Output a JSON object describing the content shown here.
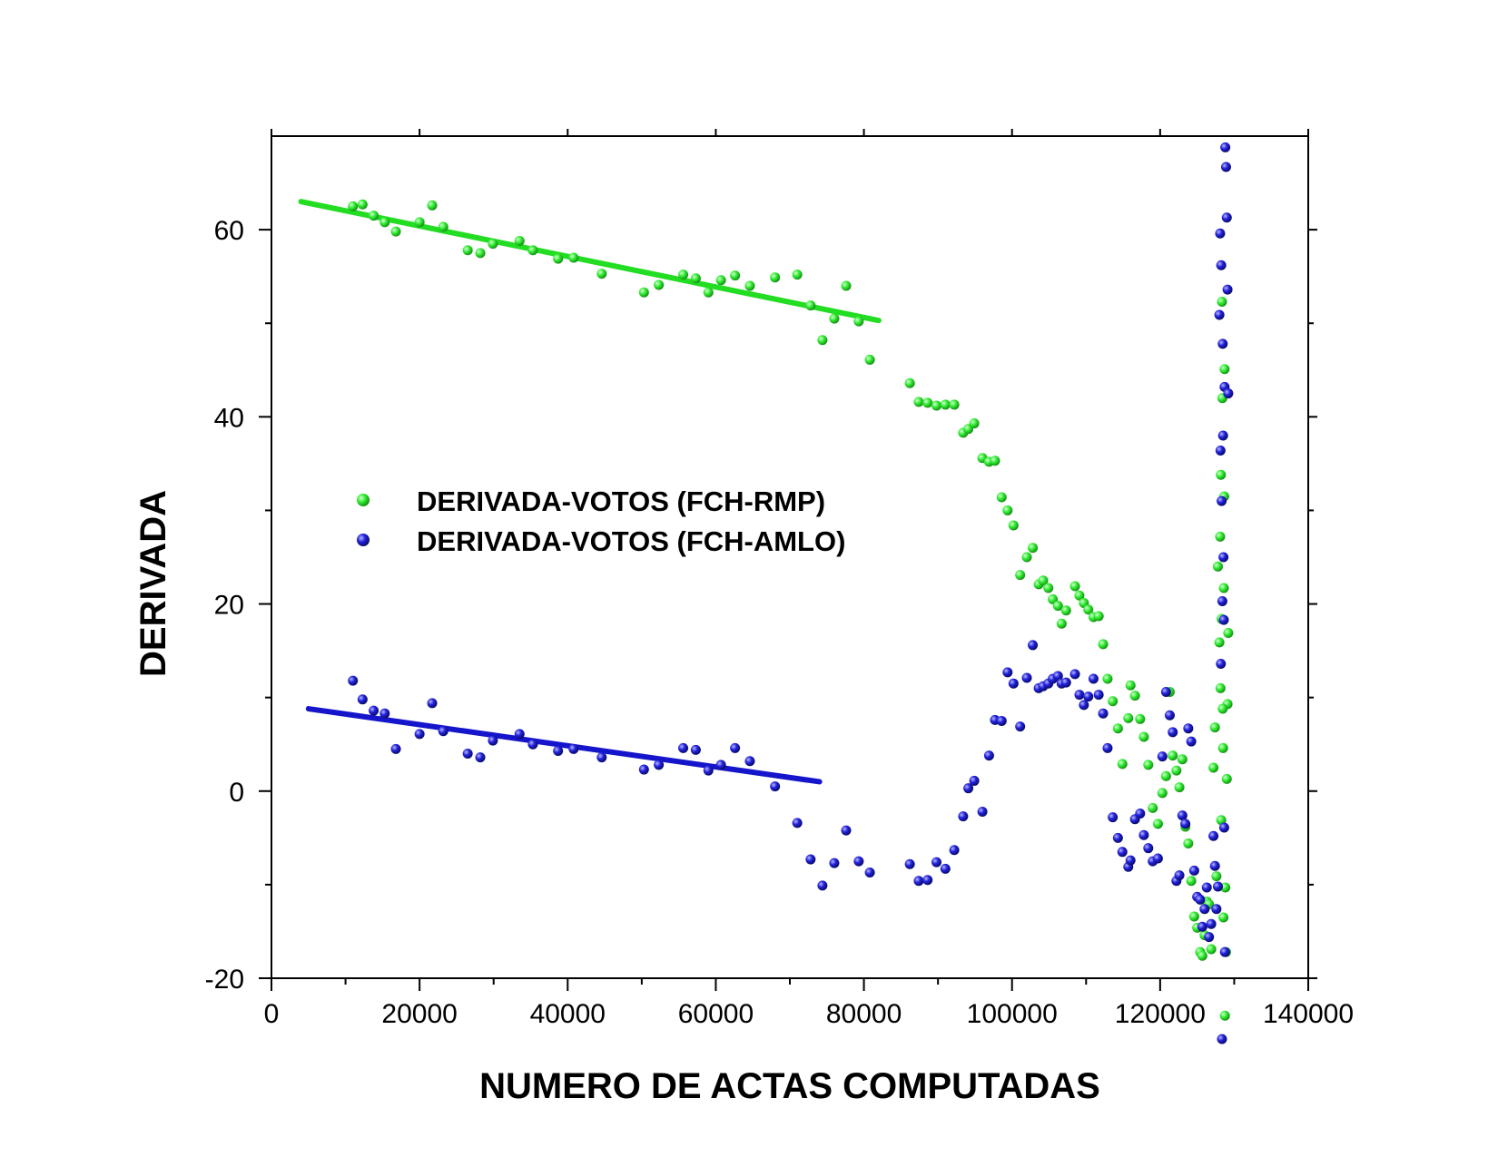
{
  "chart_data": {
    "type": "scatter",
    "title": "",
    "xlabel": "NUMERO DE ACTAS COMPUTADAS",
    "ylabel": "DERIVADA",
    "xlim": [
      0,
      140000
    ],
    "ylim": [
      -20,
      70
    ],
    "x_ticks": [
      0,
      20000,
      40000,
      60000,
      80000,
      100000,
      120000,
      140000
    ],
    "x_tick_labels": [
      "0",
      "20000",
      "40000",
      "60000",
      "80000",
      "100000",
      "120000",
      "140000"
    ],
    "y_ticks": [
      -20,
      0,
      20,
      40,
      60
    ],
    "y_tick_labels": [
      "-20",
      "0",
      "20",
      "40",
      "60"
    ],
    "grid": false,
    "legend_position": "center-left",
    "series": [
      {
        "name": "DERIVADA-VOTOS (FCH-RMP)",
        "color": "#22dd22",
        "points": [
          [
            11000,
            62.5
          ],
          [
            12300,
            62.7
          ],
          [
            13800,
            61.5
          ],
          [
            15300,
            60.8
          ],
          [
            16800,
            59.8
          ],
          [
            20000,
            60.8
          ],
          [
            21700,
            62.6
          ],
          [
            23200,
            60.3
          ],
          [
            26500,
            57.8
          ],
          [
            28200,
            57.5
          ],
          [
            29900,
            58.5
          ],
          [
            33500,
            58.8
          ],
          [
            35300,
            57.8
          ],
          [
            38700,
            56.9
          ],
          [
            40800,
            57.0
          ],
          [
            44600,
            55.3
          ],
          [
            50300,
            53.3
          ],
          [
            52300,
            54.1
          ],
          [
            55600,
            55.2
          ],
          [
            57300,
            54.8
          ],
          [
            59000,
            53.3
          ],
          [
            60700,
            54.6
          ],
          [
            62600,
            55.1
          ],
          [
            64600,
            54.0
          ],
          [
            68000,
            54.9
          ],
          [
            71000,
            55.2
          ],
          [
            72800,
            51.9
          ],
          [
            74400,
            48.2
          ],
          [
            76000,
            50.5
          ],
          [
            77600,
            54.0
          ],
          [
            79300,
            50.2
          ],
          [
            80800,
            46.1
          ],
          [
            86200,
            43.6
          ],
          [
            87400,
            41.6
          ],
          [
            88600,
            41.5
          ],
          [
            89800,
            41.2
          ],
          [
            91000,
            41.3
          ],
          [
            92200,
            41.3
          ],
          [
            93400,
            38.3
          ],
          [
            94100,
            38.7
          ],
          [
            94900,
            39.3
          ],
          [
            96000,
            35.6
          ],
          [
            96900,
            35.2
          ],
          [
            97700,
            35.3
          ],
          [
            98600,
            31.4
          ],
          [
            99400,
            30.0
          ],
          [
            100200,
            28.4
          ],
          [
            101100,
            23.1
          ],
          [
            102000,
            25.0
          ],
          [
            102800,
            26.0
          ],
          [
            103600,
            22.1
          ],
          [
            104200,
            22.5
          ],
          [
            104900,
            21.7
          ],
          [
            105500,
            20.5
          ],
          [
            106200,
            19.8
          ],
          [
            106700,
            17.9
          ],
          [
            107300,
            19.3
          ],
          [
            108500,
            21.9
          ],
          [
            109100,
            20.9
          ],
          [
            109700,
            20.1
          ],
          [
            110300,
            19.4
          ],
          [
            111000,
            18.6
          ],
          [
            111700,
            18.7
          ],
          [
            112300,
            15.7
          ],
          [
            112900,
            12.0
          ],
          [
            113600,
            9.6
          ],
          [
            114300,
            6.7
          ],
          [
            114900,
            2.9
          ],
          [
            115700,
            7.8
          ],
          [
            116000,
            11.3
          ],
          [
            116600,
            10.2
          ],
          [
            117300,
            7.7
          ],
          [
            117800,
            5.8
          ],
          [
            118400,
            2.8
          ],
          [
            119000,
            -1.8
          ],
          [
            119700,
            -3.5
          ],
          [
            120300,
            -0.2
          ],
          [
            120800,
            1.6
          ],
          [
            121300,
            10.6
          ],
          [
            121700,
            3.8
          ],
          [
            122200,
            2.2
          ],
          [
            122600,
            0.4
          ],
          [
            123000,
            3.4
          ],
          [
            123400,
            -3.8
          ],
          [
            123800,
            -5.6
          ],
          [
            124200,
            -9.6
          ],
          [
            124600,
            -13.4
          ],
          [
            125000,
            -14.6
          ],
          [
            125400,
            -17.2
          ],
          [
            125700,
            -17.6
          ],
          [
            126000,
            -15.4
          ],
          [
            126300,
            -11.8
          ],
          [
            126600,
            -12.1
          ],
          [
            126900,
            -16.9
          ],
          [
            127200,
            2.5
          ],
          [
            127400,
            6.8
          ],
          [
            127600,
            -9.1
          ],
          [
            127800,
            24.0
          ],
          [
            128000,
            15.9
          ],
          [
            128100,
            27.2
          ],
          [
            128200,
            33.8
          ],
          [
            128300,
            18.4
          ],
          [
            128400,
            42.0
          ],
          [
            128500,
            4.6
          ],
          [
            128600,
            21.7
          ],
          [
            128700,
            45.1
          ],
          [
            128800,
            -10.3
          ],
          [
            128900,
            -17.2
          ],
          [
            129000,
            1.3
          ],
          [
            129100,
            9.3
          ],
          [
            129200,
            16.9
          ],
          [
            128550,
            -13.5
          ],
          [
            128650,
            31.5
          ],
          [
            128750,
            -24.0
          ],
          [
            128350,
            52.3
          ],
          [
            128450,
            8.8
          ],
          [
            128250,
            -3.1
          ],
          [
            128150,
            11.0
          ]
        ]
      },
      {
        "name": "DERIVADA-VOTOS (FCH-AMLO)",
        "color": "#1515cc",
        "points": [
          [
            11000,
            11.8
          ],
          [
            12300,
            9.8
          ],
          [
            13800,
            8.6
          ],
          [
            15300,
            8.3
          ],
          [
            16800,
            4.5
          ],
          [
            20000,
            6.1
          ],
          [
            21700,
            9.4
          ],
          [
            23200,
            6.4
          ],
          [
            26500,
            4.0
          ],
          [
            28200,
            3.6
          ],
          [
            29900,
            5.4
          ],
          [
            33500,
            6.1
          ],
          [
            35300,
            5.0
          ],
          [
            38700,
            4.3
          ],
          [
            40800,
            4.5
          ],
          [
            44600,
            3.6
          ],
          [
            50300,
            2.3
          ],
          [
            52300,
            2.8
          ],
          [
            55600,
            4.6
          ],
          [
            57300,
            4.4
          ],
          [
            59000,
            2.2
          ],
          [
            60700,
            2.8
          ],
          [
            62600,
            4.6
          ],
          [
            64600,
            3.2
          ],
          [
            68000,
            0.5
          ],
          [
            71000,
            -3.4
          ],
          [
            72800,
            -7.3
          ],
          [
            74400,
            -10.1
          ],
          [
            76000,
            -7.7
          ],
          [
            77600,
            -4.2
          ],
          [
            79300,
            -7.5
          ],
          [
            80800,
            -8.7
          ],
          [
            86200,
            -7.8
          ],
          [
            87400,
            -9.6
          ],
          [
            88600,
            -9.5
          ],
          [
            89800,
            -7.6
          ],
          [
            91000,
            -8.3
          ],
          [
            92200,
            -6.3
          ],
          [
            93400,
            -2.7
          ],
          [
            94100,
            0.3
          ],
          [
            94900,
            1.1
          ],
          [
            96000,
            -2.2
          ],
          [
            96900,
            3.8
          ],
          [
            97700,
            7.6
          ],
          [
            98600,
            7.5
          ],
          [
            99400,
            12.7
          ],
          [
            100200,
            11.5
          ],
          [
            101100,
            6.9
          ],
          [
            102000,
            12.1
          ],
          [
            102800,
            15.6
          ],
          [
            103600,
            11.0
          ],
          [
            104200,
            11.2
          ],
          [
            104900,
            11.5
          ],
          [
            105500,
            12.0
          ],
          [
            106200,
            12.3
          ],
          [
            106700,
            11.5
          ],
          [
            107300,
            11.6
          ],
          [
            108500,
            12.5
          ],
          [
            109100,
            10.3
          ],
          [
            109700,
            9.2
          ],
          [
            110300,
            10.1
          ],
          [
            111000,
            12.0
          ],
          [
            111700,
            10.3
          ],
          [
            112300,
            8.3
          ],
          [
            112900,
            4.6
          ],
          [
            113600,
            -2.8
          ],
          [
            114300,
            -5.0
          ],
          [
            114900,
            -6.5
          ],
          [
            115700,
            -8.1
          ],
          [
            116000,
            -7.4
          ],
          [
            116600,
            -3.0
          ],
          [
            117300,
            -2.4
          ],
          [
            117800,
            -4.7
          ],
          [
            118400,
            -6.1
          ],
          [
            119000,
            -7.5
          ],
          [
            119700,
            -7.2
          ],
          [
            120300,
            3.7
          ],
          [
            120800,
            10.6
          ],
          [
            121300,
            8.1
          ],
          [
            121700,
            6.3
          ],
          [
            122200,
            -9.6
          ],
          [
            122600,
            -9.0
          ],
          [
            123000,
            -2.6
          ],
          [
            123400,
            -3.5
          ],
          [
            123800,
            6.7
          ],
          [
            124200,
            5.3
          ],
          [
            124600,
            -8.5
          ],
          [
            125000,
            -11.3
          ],
          [
            125400,
            -11.6
          ],
          [
            125700,
            -14.5
          ],
          [
            126000,
            -12.6
          ],
          [
            126300,
            -10.3
          ],
          [
            126600,
            -15.6
          ],
          [
            126900,
            -14.2
          ],
          [
            127200,
            -4.8
          ],
          [
            127400,
            -8.0
          ],
          [
            127600,
            -12.6
          ],
          [
            127800,
            -10.2
          ],
          [
            128000,
            50.9
          ],
          [
            128100,
            59.6
          ],
          [
            128200,
            13.6
          ],
          [
            128300,
            31.0
          ],
          [
            128400,
            20.3
          ],
          [
            128500,
            38.0
          ],
          [
            128600,
            18.3
          ],
          [
            128700,
            43.2
          ],
          [
            128800,
            68.8
          ],
          [
            128900,
            66.7
          ],
          [
            129000,
            61.3
          ],
          [
            129100,
            53.6
          ],
          [
            129200,
            42.5
          ],
          [
            128550,
            25.0
          ],
          [
            128650,
            -3.9
          ],
          [
            128750,
            -17.2
          ],
          [
            128350,
            -26.5
          ],
          [
            128450,
            47.8
          ],
          [
            128250,
            56.2
          ],
          [
            128150,
            36.4
          ]
        ]
      }
    ],
    "fits": [
      {
        "series": "DERIVADA-VOTOS (FCH-RMP)",
        "color": "#22dd22",
        "x": [
          4000,
          82000
        ],
        "y": [
          63.0,
          50.3
        ]
      },
      {
        "series": "DERIVADA-VOTOS (FCH-AMLO)",
        "color": "#1515cc",
        "x": [
          5000,
          74000
        ],
        "y": [
          8.8,
          1.0
        ]
      }
    ]
  }
}
